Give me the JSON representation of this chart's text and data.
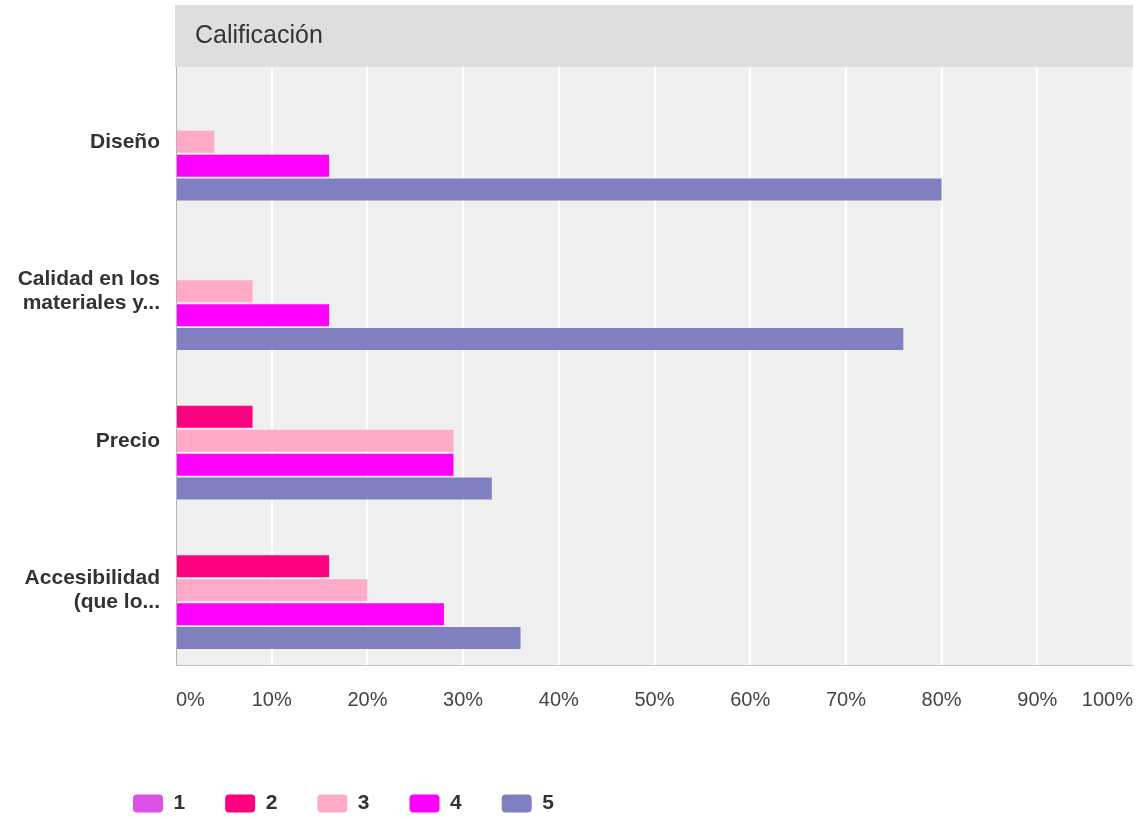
{
  "chart_data": {
    "type": "bar",
    "orientation": "horizontal",
    "title": "Calificación",
    "categories": [
      "Diseño",
      "Calidad en los materiales y...",
      "Precio",
      "Accesibilidad (que lo..."
    ],
    "series": [
      {
        "name": "1",
        "color": "#dc52e6",
        "values": [
          0,
          0,
          0,
          0
        ]
      },
      {
        "name": "2",
        "color": "#ff0080",
        "values": [
          0,
          0,
          8,
          16
        ]
      },
      {
        "name": "3",
        "color": "#ffaac9",
        "values": [
          4,
          8,
          29,
          20
        ]
      },
      {
        "name": "4",
        "color": "#ff00ff",
        "values": [
          16,
          16,
          29,
          28
        ]
      },
      {
        "name": "5",
        "color": "#8080c0",
        "values": [
          80,
          76,
          33,
          36
        ]
      }
    ],
    "xlim": [
      0,
      100
    ],
    "xticks": [
      {
        "value": 0,
        "label": "0%"
      },
      {
        "value": 10,
        "label": "10%"
      },
      {
        "value": 20,
        "label": "20%"
      },
      {
        "value": 30,
        "label": "30%"
      },
      {
        "value": 40,
        "label": "40%"
      },
      {
        "value": 50,
        "label": "50%"
      },
      {
        "value": 60,
        "label": "60%"
      },
      {
        "value": 70,
        "label": "70%"
      },
      {
        "value": 80,
        "label": "80%"
      },
      {
        "value": 90,
        "label": "90%"
      },
      {
        "value": 100,
        "label": "100%"
      }
    ],
    "grid": "x",
    "legend": "bottom left"
  }
}
